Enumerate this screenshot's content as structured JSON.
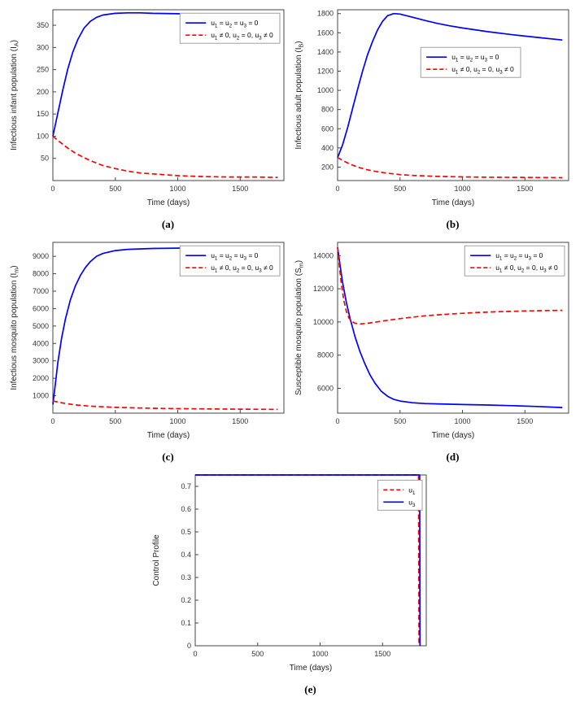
{
  "colors": {
    "blue": "#0000ff",
    "red": "#ff0000",
    "axis": "#444444"
  },
  "chart_data": [
    {
      "id": "a",
      "caption": "(a)",
      "type": "line",
      "xlabel": "Time (days)",
      "ylabel_text": "Infectious infant population (I_A)",
      "ylabel_parts": [
        [
          "Infectious infant population (I",
          false
        ],
        [
          "A",
          true
        ],
        [
          ")",
          false
        ]
      ],
      "xlim": [
        0,
        1850
      ],
      "ylim": [
        0,
        385
      ],
      "xticks": [
        0,
        500,
        1000,
        1500
      ],
      "yticks": [
        50,
        100,
        150,
        200,
        250,
        300,
        350
      ],
      "legend": {
        "fy": 0.02,
        "entries": [
          {
            "label_text": "u_1 = u_2 = u_3 = 0",
            "label_parts": [
              [
                "u",
                false
              ],
              [
                "1",
                true
              ],
              [
                " = u",
                false
              ],
              [
                "2",
                true
              ],
              [
                " = u",
                false
              ],
              [
                "3",
                true
              ],
              [
                " = 0",
                false
              ]
            ],
            "color": "#0000ff",
            "dash": false
          },
          {
            "label_text": "u_1 ≠ 0, u_2 = 0, u_3 ≠ 0",
            "label_parts": [
              [
                "u",
                false
              ],
              [
                "1",
                true
              ],
              [
                " ≠ 0, u",
                false
              ],
              [
                "2",
                true
              ],
              [
                " = 0, u",
                false
              ],
              [
                "3",
                true
              ],
              [
                " ≠ 0",
                false
              ]
            ],
            "color": "#ff0000",
            "dash": true
          }
        ]
      },
      "series": [
        {
          "name": "no-control",
          "color": "#0000ff",
          "dash": false,
          "x": [
            0,
            40,
            80,
            120,
            160,
            200,
            250,
            300,
            350,
            400,
            500,
            600,
            700,
            800,
            1000,
            1200,
            1400,
            1600,
            1800
          ],
          "y": [
            100,
            152,
            205,
            252,
            290,
            318,
            344,
            359,
            368,
            373,
            377,
            378,
            378,
            377,
            376,
            375,
            374,
            373,
            372
          ]
        },
        {
          "name": "with-control",
          "color": "#ff0000",
          "dash": true,
          "x": [
            0,
            60,
            120,
            180,
            240,
            300,
            400,
            500,
            600,
            700,
            800,
            1000,
            1200,
            1400,
            1600,
            1800
          ],
          "y": [
            100,
            86,
            73,
            62,
            53,
            45,
            34,
            27,
            21,
            17,
            15,
            11,
            9,
            8,
            8,
            7
          ]
        }
      ]
    },
    {
      "id": "b",
      "caption": "(b)",
      "type": "line",
      "xlabel": "Time (days)",
      "ylabel_text": "Infectious adult population (I_B)",
      "ylabel_parts": [
        [
          "Infectious adult population (I",
          false
        ],
        [
          "B",
          true
        ],
        [
          ")",
          false
        ]
      ],
      "xlim": [
        0,
        1850
      ],
      "ylim": [
        60,
        1840
      ],
      "xticks": [
        0,
        500,
        1000,
        1500
      ],
      "yticks": [
        200,
        400,
        600,
        800,
        1000,
        1200,
        1400,
        1600,
        1800
      ],
      "legend": {
        "fx": 0.36,
        "fy": 0.22,
        "entries": [
          {
            "label_text": "u_1 = u_2 = u_3 = 0",
            "label_parts": [
              [
                "u",
                false
              ],
              [
                "1",
                true
              ],
              [
                " = u",
                false
              ],
              [
                "2",
                true
              ],
              [
                " = u",
                false
              ],
              [
                "3",
                true
              ],
              [
                " = 0",
                false
              ]
            ],
            "color": "#0000ff",
            "dash": false
          },
          {
            "label_text": "u_1 ≠ 0, u_2 = 0, u_3 ≠ 0",
            "label_parts": [
              [
                "u",
                false
              ],
              [
                "1",
                true
              ],
              [
                " ≠ 0, u",
                false
              ],
              [
                "2",
                true
              ],
              [
                " = 0, u",
                false
              ],
              [
                "3",
                true
              ],
              [
                " ≠ 0",
                false
              ]
            ],
            "color": "#ff0000",
            "dash": true
          }
        ]
      },
      "series": [
        {
          "name": "no-control",
          "color": "#0000ff",
          "dash": false,
          "x": [
            0,
            40,
            80,
            120,
            160,
            200,
            240,
            280,
            320,
            360,
            400,
            450,
            500,
            600,
            700,
            800,
            900,
            1000,
            1200,
            1400,
            1600,
            1800
          ],
          "y": [
            300,
            430,
            610,
            810,
            1010,
            1200,
            1370,
            1510,
            1630,
            1720,
            1778,
            1800,
            1795,
            1762,
            1728,
            1698,
            1672,
            1650,
            1612,
            1580,
            1552,
            1525
          ]
        },
        {
          "name": "with-control",
          "color": "#ff0000",
          "dash": true,
          "x": [
            0,
            60,
            120,
            180,
            240,
            300,
            400,
            500,
            600,
            800,
            1000,
            1200,
            1400,
            1600,
            1800
          ],
          "y": [
            300,
            256,
            220,
            193,
            172,
            156,
            136,
            122,
            113,
            103,
            98,
            95,
            93,
            91,
            90
          ]
        }
      ]
    },
    {
      "id": "c",
      "caption": "(c)",
      "type": "line",
      "xlabel": "Time (days)",
      "ylabel_text": "Infectious mosquito population (I_m)",
      "ylabel_parts": [
        [
          "Infectious mosquito population (I",
          false
        ],
        [
          "m",
          true
        ],
        [
          ")",
          false
        ]
      ],
      "xlim": [
        0,
        1850
      ],
      "ylim": [
        0,
        9800
      ],
      "xticks": [
        0,
        500,
        1000,
        1500
      ],
      "yticks": [
        1000,
        2000,
        3000,
        4000,
        5000,
        6000,
        7000,
        8000,
        9000
      ],
      "legend": {
        "fy": 0.02,
        "entries": [
          {
            "label_text": "u_1 = u_2 = u_3 = 0",
            "label_parts": [
              [
                "u",
                false
              ],
              [
                "1",
                true
              ],
              [
                " = u",
                false
              ],
              [
                "2",
                true
              ],
              [
                " = u",
                false
              ],
              [
                "3",
                true
              ],
              [
                " = 0",
                false
              ]
            ],
            "color": "#0000ff",
            "dash": false
          },
          {
            "label_text": "u_1 ≠ 0, u_2 = 0, u_3 ≠ 0",
            "label_parts": [
              [
                "u",
                false
              ],
              [
                "1",
                true
              ],
              [
                " ≠ 0, u",
                false
              ],
              [
                "2",
                true
              ],
              [
                " = 0, u",
                false
              ],
              [
                "3",
                true
              ],
              [
                " ≠ 0",
                false
              ]
            ],
            "color": "#ff0000",
            "dash": true
          }
        ]
      },
      "series": [
        {
          "name": "no-control",
          "color": "#0000ff",
          "dash": false,
          "x": [
            0,
            20,
            40,
            70,
            100,
            140,
            180,
            220,
            260,
            300,
            350,
            400,
            500,
            600,
            800,
            1000,
            1200,
            1400,
            1600,
            1800
          ],
          "y": [
            500,
            1700,
            2900,
            4300,
            5400,
            6500,
            7300,
            7900,
            8350,
            8700,
            9000,
            9160,
            9330,
            9400,
            9450,
            9470,
            9485,
            9495,
            9505,
            9515
          ]
        },
        {
          "name": "with-control",
          "color": "#ff0000",
          "dash": true,
          "x": [
            0,
            50,
            100,
            150,
            200,
            300,
            400,
            500,
            700,
            900,
            1100,
            1300,
            1500,
            1800
          ],
          "y": [
            700,
            620,
            556,
            505,
            464,
            402,
            362,
            333,
            294,
            268,
            250,
            237,
            227,
            216
          ]
        }
      ]
    },
    {
      "id": "d",
      "caption": "(d)",
      "type": "line",
      "xlabel": "Time (days)",
      "ylabel_text": "Susceptible mosquito population (S_m)",
      "ylabel_parts": [
        [
          "Susceptible mosquito population (S",
          false
        ],
        [
          "m",
          true
        ],
        [
          ")",
          false
        ]
      ],
      "xlim": [
        0,
        1850
      ],
      "ylim": [
        4500,
        14800
      ],
      "xticks": [
        0,
        500,
        1000,
        1500
      ],
      "yticks": [
        6000,
        8000,
        10000,
        12000,
        14000
      ],
      "legend": {
        "fy": 0.02,
        "entries": [
          {
            "label_text": "u_1 = u_2 = u_3 = 0",
            "label_parts": [
              [
                "u",
                false
              ],
              [
                "1",
                true
              ],
              [
                " = u",
                false
              ],
              [
                "2",
                true
              ],
              [
                " = u",
                false
              ],
              [
                "3",
                true
              ],
              [
                " = 0",
                false
              ]
            ],
            "color": "#0000ff",
            "dash": false
          },
          {
            "label_text": "u_1 ≠ 0, u_2 = 0, u_3 ≠ 0",
            "label_parts": [
              [
                "u",
                false
              ],
              [
                "1",
                true
              ],
              [
                " ≠ 0, u",
                false
              ],
              [
                "2",
                true
              ],
              [
                " = 0, u",
                false
              ],
              [
                "3",
                true
              ],
              [
                " ≠ 0",
                false
              ]
            ],
            "color": "#ff0000",
            "dash": true
          }
        ]
      },
      "series": [
        {
          "name": "no-control",
          "color": "#0000ff",
          "dash": false,
          "x": [
            0,
            20,
            40,
            70,
            100,
            140,
            180,
            220,
            260,
            300,
            350,
            400,
            450,
            500,
            600,
            700,
            800,
            1000,
            1200,
            1400,
            1600,
            1800
          ],
          "y": [
            14500,
            13400,
            12400,
            11200,
            10200,
            9100,
            8200,
            7450,
            6800,
            6300,
            5820,
            5520,
            5330,
            5230,
            5130,
            5080,
            5060,
            5020,
            4990,
            4950,
            4900,
            4840
          ]
        },
        {
          "name": "with-control",
          "color": "#ff0000",
          "dash": true,
          "x": [
            0,
            15,
            30,
            50,
            70,
            90,
            110,
            140,
            180,
            240,
            320,
            420,
            550,
            700,
            900,
            1100,
            1300,
            1500,
            1700,
            1800
          ],
          "y": [
            14500,
            13300,
            12300,
            11300,
            10650,
            10250,
            10050,
            9920,
            9880,
            9920,
            10010,
            10120,
            10250,
            10370,
            10480,
            10560,
            10620,
            10660,
            10690,
            10700
          ]
        }
      ]
    },
    {
      "id": "e",
      "caption": "(e)",
      "type": "line",
      "xlabel": "Time (days)",
      "ylabel_text": "Control Profile",
      "ylabel_parts": [
        [
          "Control Profile",
          false
        ]
      ],
      "xlim": [
        0,
        1850
      ],
      "ylim": [
        0,
        0.75
      ],
      "xticks": [
        0,
        500,
        1000,
        1500
      ],
      "yticks": [
        0,
        0.1,
        0.2,
        0.3,
        0.4,
        0.5,
        0.6,
        0.7
      ],
      "legend": {
        "fy": 0.03,
        "entries": [
          {
            "label_text": "u_1",
            "label_parts": [
              [
                "u",
                false
              ],
              [
                "1",
                true
              ]
            ],
            "color": "#ff0000",
            "dash": true
          },
          {
            "label_text": "u_3",
            "label_parts": [
              [
                "u",
                false
              ],
              [
                "3",
                true
              ]
            ],
            "color": "#0000ff",
            "dash": false
          }
        ]
      },
      "series": [
        {
          "name": "u1-control",
          "color": "#ff0000",
          "dash": true,
          "x": [
            0,
            1788,
            1792
          ],
          "y": [
            0.75,
            0.75,
            0
          ]
        },
        {
          "name": "u3-control",
          "color": "#0000ff",
          "dash": false,
          "x": [
            0,
            1797,
            1800
          ],
          "y": [
            0.75,
            0.75,
            0
          ]
        }
      ]
    }
  ]
}
